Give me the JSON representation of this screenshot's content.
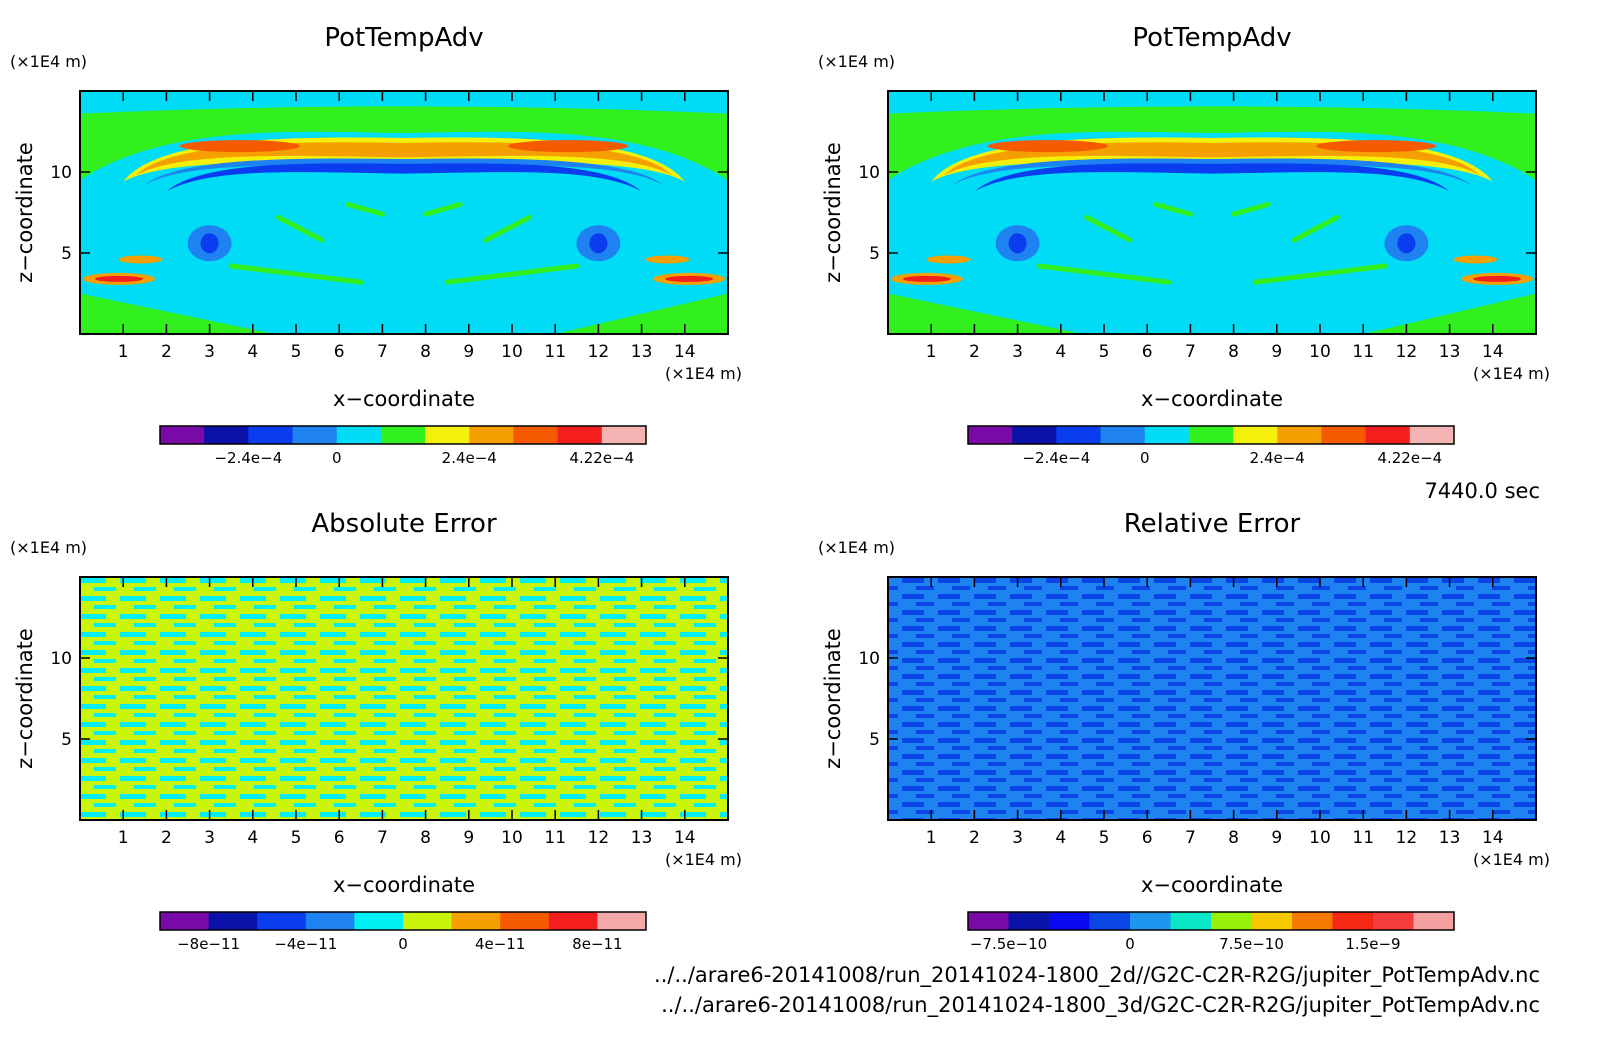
{
  "footer": {
    "time": "7440.0 sec",
    "file1": "../../arare6-20141008/run_20141024-1800_2d//G2C-C2R-R2G/jupiter_PotTempAdv.nc",
    "file2": "../../arare6-20141008/run_20141024-1800_3d/G2C-C2R-R2G/jupiter_PotTempAdv.nc"
  },
  "chart_data": [
    {
      "type": "heatmap",
      "title": "PotTempAdv",
      "xlabel": "x−coordinate",
      "ylabel": "z−coordinate",
      "x_unit": "(×1E4 m)",
      "y_unit": "(×1E4 m)",
      "xlim": [
        0,
        15
      ],
      "ylim": [
        0,
        15
      ],
      "x_ticks": [
        "1",
        "2",
        "3",
        "4",
        "5",
        "6",
        "7",
        "8",
        "9",
        "10",
        "11",
        "12",
        "13",
        "14"
      ],
      "y_ticks": [
        "5",
        "10"
      ],
      "colorbar": {
        "colors": [
          "#7a0aa8",
          "#0a12a8",
          "#0a3cf0",
          "#1e82f0",
          "#00dcf5",
          "#32f01e",
          "#f5f00a",
          "#f5a000",
          "#f55a00",
          "#f51e1e",
          "#f5b4b4"
        ],
        "tick_labels": [
          "−2.4e−4",
          "0",
          "2.4e−4",
          "4.22e−4"
        ],
        "tick_at_boundary": [
          2,
          4,
          7,
          10
        ]
      }
    },
    {
      "type": "heatmap",
      "title": "PotTempAdv",
      "xlabel": "x−coordinate",
      "ylabel": "z−coordinate",
      "x_unit": "(×1E4 m)",
      "y_unit": "(×1E4 m)",
      "xlim": [
        0,
        15
      ],
      "ylim": [
        0,
        15
      ],
      "x_ticks": [
        "1",
        "2",
        "3",
        "4",
        "5",
        "6",
        "7",
        "8",
        "9",
        "10",
        "11",
        "12",
        "13",
        "14"
      ],
      "y_ticks": [
        "5",
        "10"
      ],
      "colorbar": {
        "colors": [
          "#7a0aa8",
          "#0a12a8",
          "#0a3cf0",
          "#1e82f0",
          "#00dcf5",
          "#32f01e",
          "#f5f00a",
          "#f5a000",
          "#f55a00",
          "#f51e1e",
          "#f5b4b4"
        ],
        "tick_labels": [
          "−2.4e−4",
          "0",
          "2.4e−4",
          "4.22e−4"
        ],
        "tick_at_boundary": [
          2,
          4,
          7,
          10
        ]
      }
    },
    {
      "type": "heatmap",
      "title": "Absolute Error",
      "xlabel": "x−coordinate",
      "ylabel": "z−coordinate",
      "x_unit": "(×1E4 m)",
      "y_unit": "(×1E4 m)",
      "xlim": [
        0,
        15
      ],
      "ylim": [
        0,
        15
      ],
      "x_ticks": [
        "1",
        "2",
        "3",
        "4",
        "5",
        "6",
        "7",
        "8",
        "9",
        "10",
        "11",
        "12",
        "13",
        "14"
      ],
      "y_ticks": [
        "5",
        "10"
      ],
      "colorbar": {
        "colors": [
          "#7a0aa8",
          "#0a12a8",
          "#0a3cf0",
          "#1e82f0",
          "#00f0f5",
          "#c8f50a",
          "#f5a000",
          "#f55a00",
          "#f51e1e",
          "#f5a8a8"
        ],
        "tick_labels": [
          "−8e−11",
          "−4e−11",
          "0",
          "4e−11",
          "8e−11"
        ],
        "tick_at_boundary": [
          1,
          3,
          5,
          7,
          9
        ]
      }
    },
    {
      "type": "heatmap",
      "title": "Relative Error",
      "xlabel": "x−coordinate",
      "ylabel": "z−coordinate",
      "x_unit": "(×1E4 m)",
      "y_unit": "(×1E4 m)",
      "xlim": [
        0,
        15
      ],
      "ylim": [
        0,
        15
      ],
      "x_ticks": [
        "1",
        "2",
        "3",
        "4",
        "5",
        "6",
        "7",
        "8",
        "9",
        "10",
        "11",
        "12",
        "13",
        "14"
      ],
      "y_ticks": [
        "5",
        "10"
      ],
      "colorbar": {
        "colors": [
          "#7a0aa8",
          "#0a12a8",
          "#0a0af0",
          "#0a46e6",
          "#1e96f0",
          "#0ae6c8",
          "#96f00a",
          "#f5c800",
          "#f57800",
          "#f52814",
          "#f53c3c",
          "#f5a0a0"
        ],
        "tick_labels": [
          "−7.5e−10",
          "0",
          "7.5e−10",
          "1.5e−9"
        ],
        "tick_at_boundary": [
          1,
          4,
          7,
          10
        ]
      }
    }
  ]
}
